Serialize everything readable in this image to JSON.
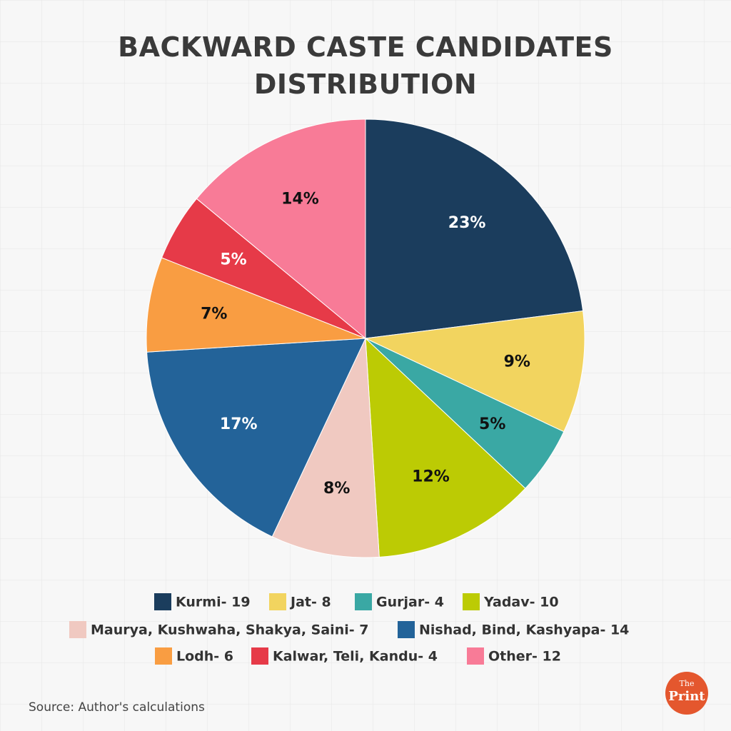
{
  "chart_data": {
    "type": "pie",
    "title": "BACKWARD CASTE CANDIDATES\nDISTRIBUTION",
    "categories": [
      "Kurmi- 19",
      "Jat- 8",
      "Gurjar- 4",
      "Yadav- 10",
      "Maurya, Kushwaha, Shakya, Saini- 7",
      "Nishad, Bind, Kashyapa- 14",
      "Lodh- 6",
      "Kalwar, Teli, Kandu- 4",
      "Other- 12"
    ],
    "values": [
      23,
      9,
      5,
      12,
      8,
      17,
      7,
      5,
      14
    ],
    "value_labels": [
      "23%",
      "9%",
      "5%",
      "12%",
      "8%",
      "17%",
      "7%",
      "5%",
      "14%"
    ],
    "colors": [
      "#1b3d5d",
      "#f2d45f",
      "#3aa8a4",
      "#bccb04",
      "#f0c9c1",
      "#236399",
      "#f99d42",
      "#e63a48",
      "#f87b97"
    ],
    "source": "Source: Author's calculations",
    "logo": {
      "top": "The",
      "bottom": "Print"
    }
  }
}
